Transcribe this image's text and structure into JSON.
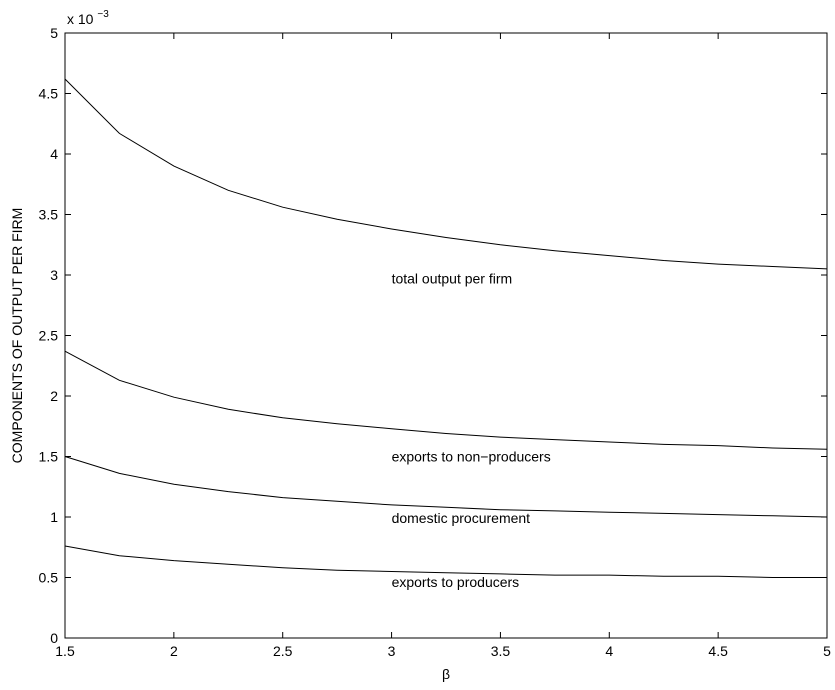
{
  "chart_data": {
    "type": "line",
    "title": "",
    "xlabel": "β",
    "ylabel": "COMPONENTS OF OUTPUT PER FIRM",
    "y_multiplier": "x 10",
    "y_multiplier_exp": "−3",
    "xlim": [
      1.5,
      5
    ],
    "ylim": [
      0,
      5
    ],
    "x_ticks": [
      1.5,
      2,
      2.5,
      3,
      3.5,
      4,
      4.5,
      5
    ],
    "x_tick_labels": [
      "1.5",
      "2",
      "2.5",
      "3",
      "3.5",
      "4",
      "4.5",
      "5"
    ],
    "y_ticks": [
      0,
      0.5,
      1,
      1.5,
      2,
      2.5,
      3,
      3.5,
      4,
      4.5,
      5
    ],
    "y_tick_labels": [
      "0",
      "0.5",
      "1",
      "1.5",
      "2",
      "2.5",
      "3",
      "3.5",
      "4",
      "4.5",
      "5"
    ],
    "grid": false,
    "legend": "none",
    "x": [
      1.5,
      1.75,
      2,
      2.25,
      2.5,
      2.75,
      3,
      3.25,
      3.5,
      3.75,
      4,
      4.25,
      4.5,
      4.75,
      5
    ],
    "series": [
      {
        "values": [
          4.62,
          4.17,
          3.9,
          3.7,
          3.56,
          3.46,
          3.38,
          3.31,
          3.25,
          3.2,
          3.16,
          3.12,
          3.09,
          3.07,
          3.05
        ]
      },
      {
        "values": [
          2.37,
          2.13,
          1.99,
          1.89,
          1.82,
          1.77,
          1.73,
          1.69,
          1.66,
          1.64,
          1.62,
          1.6,
          1.59,
          1.57,
          1.56
        ]
      },
      {
        "values": [
          1.5,
          1.36,
          1.27,
          1.21,
          1.16,
          1.13,
          1.1,
          1.08,
          1.06,
          1.05,
          1.04,
          1.03,
          1.02,
          1.01,
          1.0
        ]
      },
      {
        "values": [
          0.76,
          0.68,
          0.64,
          0.61,
          0.58,
          0.56,
          0.55,
          0.54,
          0.53,
          0.52,
          0.52,
          0.51,
          0.51,
          0.5,
          0.5
        ]
      }
    ],
    "annotations": [
      {
        "text": "total output per firm",
        "x": 3.0,
        "y": 2.93
      },
      {
        "text": "exports to non−producers",
        "x": 3.0,
        "y": 1.46
      },
      {
        "text": "domestic procurement",
        "x": 3.0,
        "y": 0.95
      },
      {
        "text": "exports to producers",
        "x": 3.0,
        "y": 0.42
      }
    ]
  }
}
